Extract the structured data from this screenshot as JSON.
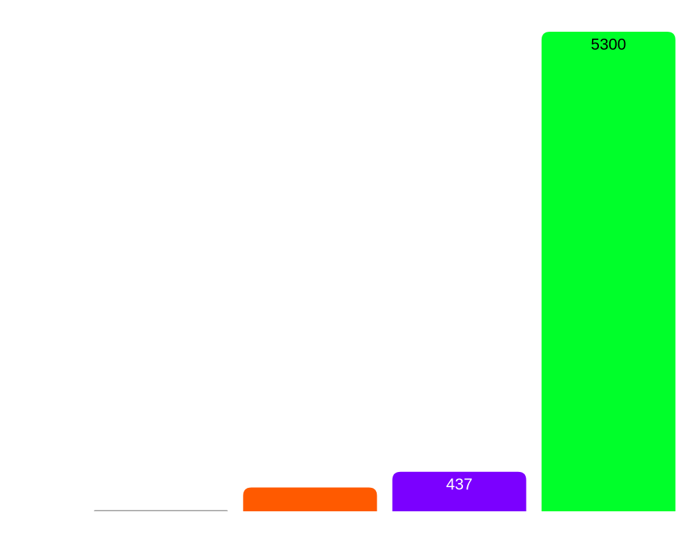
{
  "chart_data": {
    "type": "bar",
    "categories": [
      "",
      "",
      "",
      ""
    ],
    "values": [
      12,
      263,
      437,
      5300
    ],
    "data_labels": [
      "",
      "",
      "437",
      "5300"
    ],
    "colors": [
      "#b0b0b0",
      "#ff5a00",
      "#7b00ff",
      "#00ff2a"
    ],
    "label_colors": [
      "#000000",
      "#000000",
      "#ffffff",
      "#000000"
    ],
    "title": "",
    "xlabel": "",
    "ylabel": "",
    "ylim": [
      0,
      5300
    ],
    "grid": false,
    "legend": "none"
  }
}
